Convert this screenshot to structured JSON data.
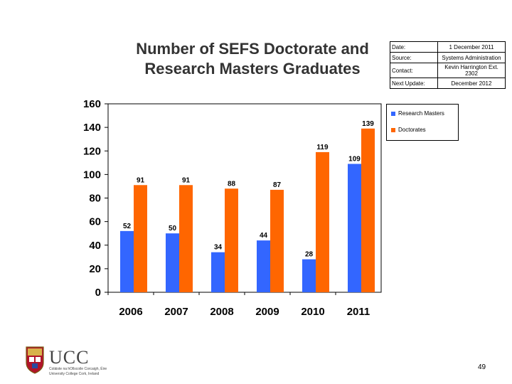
{
  "title": "Number of SEFS Doctorate and Research Masters Graduates",
  "info_table": [
    {
      "key": "Date:",
      "value": "1 December 2011"
    },
    {
      "key": "Source:",
      "value": "Systems Administration"
    },
    {
      "key": "Contact:",
      "value": "Kevin Harrington Ext. 2302"
    },
    {
      "key": "Next Update:",
      "value": "December 2012"
    }
  ],
  "chart_data": {
    "type": "bar",
    "categories": [
      "2006",
      "2007",
      "2008",
      "2009",
      "2010",
      "2011"
    ],
    "series": [
      {
        "name": "Research Masters",
        "color": "#3366ff",
        "values": [
          52,
          50,
          34,
          44,
          28,
          109
        ]
      },
      {
        "name": "Doctorates",
        "color": "#ff6600",
        "values": [
          91,
          91,
          88,
          87,
          119,
          139
        ]
      }
    ],
    "ylim": [
      0,
      160
    ],
    "yticks": [
      "0",
      "20",
      "40",
      "60",
      "80",
      "100",
      "120",
      "140",
      "160"
    ],
    "legend_position": "right",
    "grid": false
  },
  "logo": {
    "text": "UCC",
    "subtitle_line1": "Coláiste na hOllscoile Corcaigh, Éire",
    "subtitle_line2": "University College Cork, Ireland"
  },
  "page_number": "49"
}
